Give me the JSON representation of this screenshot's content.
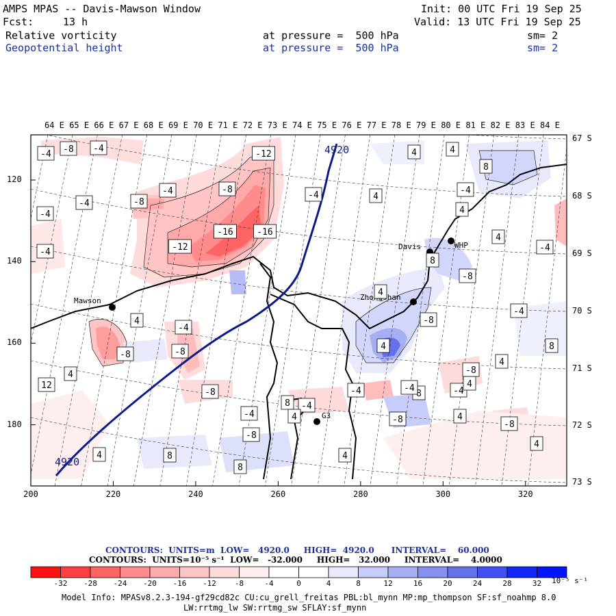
{
  "header": {
    "title": "AMPS MPAS -- Davis-Mawson Window",
    "init": "Init: 00 UTC Fri 19 Sep 25",
    "fcst_label": "Fcst:",
    "fcst_value": "13 h",
    "valid": "Valid: 13 UTC Fri 19 Sep 25",
    "field1": {
      "name": "Relative vorticity",
      "pressure": "at pressure =  500 hPa",
      "sm": "sm= 2"
    },
    "field2": {
      "name": "Geopotential height",
      "pressure": "at pressure =  500 hPa",
      "sm": "sm= 2"
    }
  },
  "map": {
    "longitude_labels": [
      "64 E",
      "65 E",
      "66 E",
      "67 E",
      "68 E",
      "69 E",
      "70 E",
      "71 E",
      "72 E",
      "73 E",
      "74 E",
      "75 E",
      "76 E",
      "77 E",
      "78 E",
      "79 E",
      "80 E",
      "81 E",
      "82 E",
      "83 E",
      "84 E"
    ],
    "x_ticks": [
      "200",
      "220",
      "240",
      "260",
      "280",
      "300",
      "320"
    ],
    "y_ticks": [
      "120",
      "140",
      "160",
      "180"
    ],
    "latitude_labels": [
      "67 S",
      "68 S",
      "69 S",
      "70 S",
      "71 S",
      "72 S",
      "73 S"
    ],
    "stations": [
      {
        "name": "Mawson"
      },
      {
        "name": "Davis"
      },
      {
        "name": "WHP"
      },
      {
        "name": "Zhongshan"
      },
      {
        "name": "G3"
      }
    ],
    "height_contour_labels": [
      "4920",
      "4920"
    ],
    "vorticity_labels": [
      "-4",
      "-8",
      "-4",
      "-12",
      "-8",
      "-4",
      "-4",
      "-8",
      "-4",
      "-4",
      "-12",
      "-16",
      "-16",
      "-4",
      "-8",
      "4",
      "4",
      "4",
      "8",
      "4",
      "-4",
      "4",
      "-8",
      "-4",
      "-4",
      "-8",
      "4",
      "-8",
      "4",
      "-4",
      "-8",
      "-4",
      "-8",
      "4",
      "4",
      "8",
      "-8",
      "4",
      "-4",
      "-8",
      "8",
      "4",
      "8",
      "4",
      "12",
      "8",
      "4",
      "8",
      "4",
      "4",
      "-4",
      "8",
      "-4",
      "-8",
      "-4",
      "4"
    ],
    "colors": {
      "height_contour": "#0a1a8a",
      "coast": "#000000"
    }
  },
  "captions": {
    "height": {
      "contours": "CONTOURS:",
      "units": "UNITS=m",
      "low": "LOW=   4920.0",
      "high": "HIGH=  4920.0",
      "interval": "INTERVAL=    60.000"
    },
    "vorticity": {
      "contours": "CONTOURS:",
      "units": "UNITS=10⁻⁵ s⁻¹",
      "low": "LOW=   -32.000",
      "high": "HIGH=   32.000",
      "interval": "INTERVAL=    4.0000"
    }
  },
  "colorbar": {
    "ticks": [
      "-32",
      "-28",
      "-24",
      "-20",
      "-16",
      "-12",
      "-8",
      "-4",
      "0",
      "4",
      "8",
      "12",
      "16",
      "20",
      "24",
      "28",
      "32"
    ],
    "unit": "10⁻⁵ s⁻¹",
    "colors": [
      "#ff1010",
      "#ff4040",
      "#ff6464",
      "#ff8c8c",
      "#ffaaaa",
      "#ffc4c4",
      "#ffdcdc",
      "#ffeeee",
      "#ffffff",
      "#ffffff",
      "#e8eafc",
      "#c8ccf8",
      "#a6aef4",
      "#8590f0",
      "#6470ec",
      "#4050f2",
      "#1028f8",
      "#0014ff"
    ]
  },
  "footer": {
    "line1": "Model Info: MPASv8.2.3-194-gf29cd82c CU:cu_grell_freitas PBL:bl_mynn MP:mp_thompson SF:sf_noahmp 8.0",
    "line2": "LW:rrtmg_lw SW:rrtmg_sw SFLAY:sf_mynn"
  }
}
